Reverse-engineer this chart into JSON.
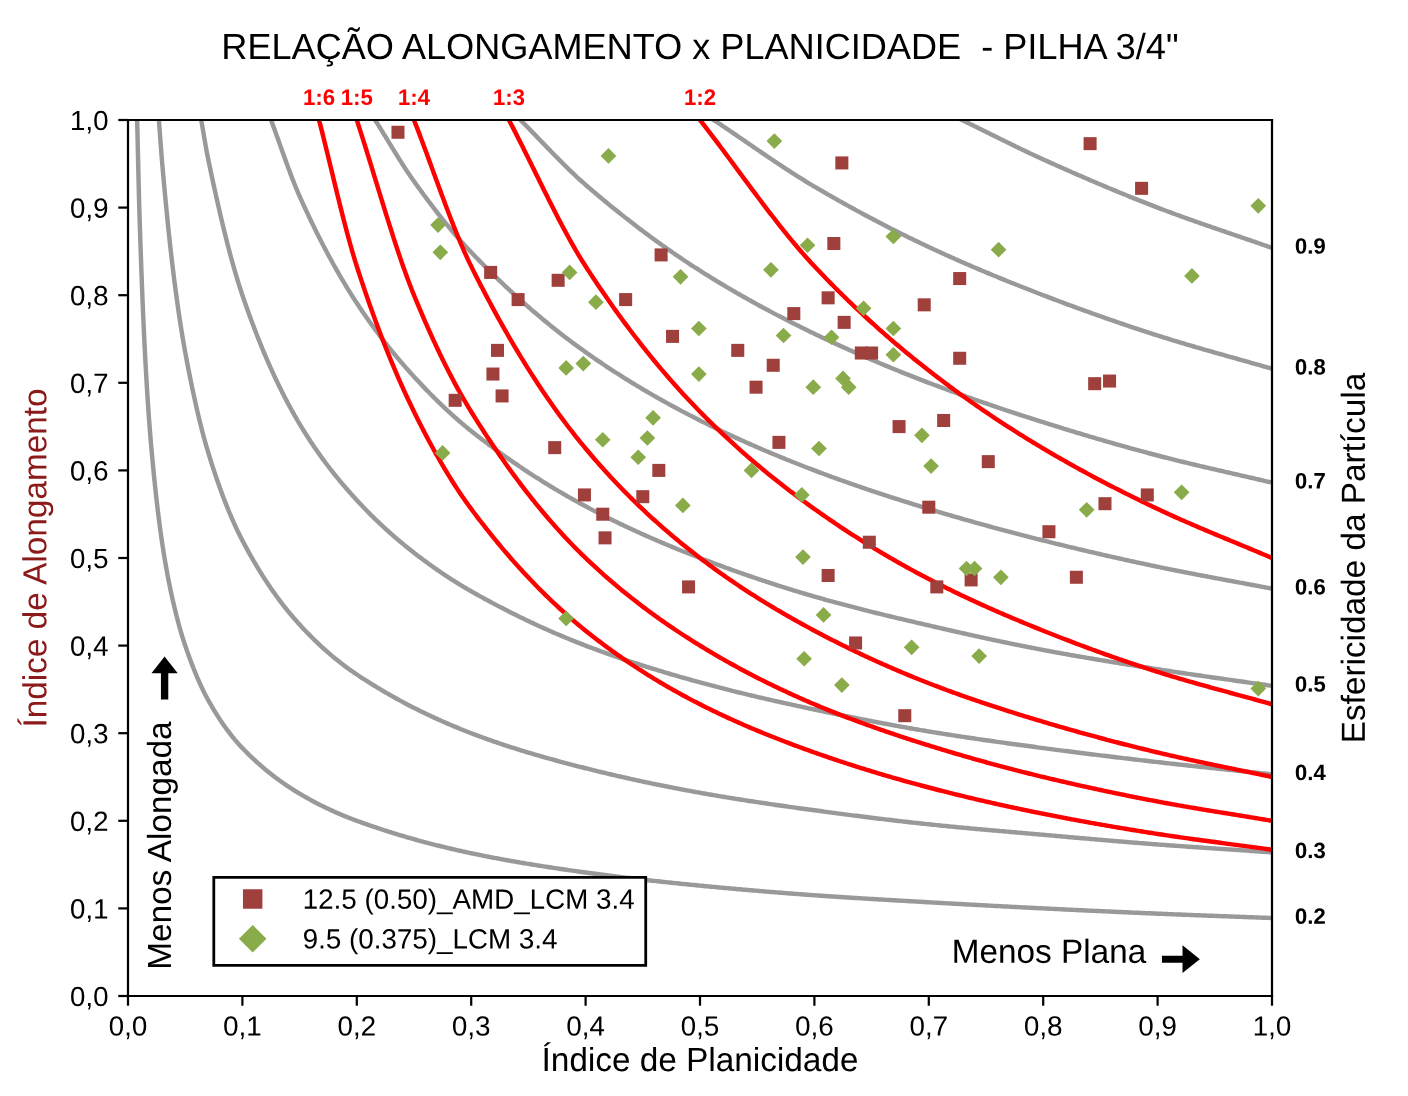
{
  "chart_data": {
    "type": "scatter",
    "title": "RELAÇÃO ALONGAMENTO x PLANICIDADE  - PILHA 3/4\"",
    "xlabel": "Índice de Planicidade",
    "ylabel": "Índice de Alongamento",
    "y2label": "Esfericidade da Partícula",
    "annotations": [
      "Menos Alongada",
      "Menos Plana"
    ],
    "xlim": [
      0,
      1
    ],
    "ylim": [
      0,
      1
    ],
    "xticks": [
      {
        "value": 0,
        "label": "0,0"
      },
      {
        "value": 0.1,
        "label": "0,1"
      },
      {
        "value": 0.2,
        "label": "0,2"
      },
      {
        "value": 0.3,
        "label": "0,3"
      },
      {
        "value": 0.4,
        "label": "0,4"
      },
      {
        "value": 0.5,
        "label": "0,5"
      },
      {
        "value": 0.6,
        "label": "0,6"
      },
      {
        "value": 0.7,
        "label": "0,7"
      },
      {
        "value": 0.8,
        "label": "0,8"
      },
      {
        "value": 0.9,
        "label": "0,9"
      },
      {
        "value": 1,
        "label": "1,0"
      }
    ],
    "yticks": [
      {
        "value": 0,
        "label": "0,0"
      },
      {
        "value": 0.1,
        "label": "0,1"
      },
      {
        "value": 0.2,
        "label": "0,2"
      },
      {
        "value": 0.3,
        "label": "0,3"
      },
      {
        "value": 0.4,
        "label": "0,4"
      },
      {
        "value": 0.5,
        "label": "0,5"
      },
      {
        "value": 0.6,
        "label": "0,6"
      },
      {
        "value": 0.7,
        "label": "0,7"
      },
      {
        "value": 0.8,
        "label": "0,8"
      },
      {
        "value": 0.9,
        "label": "0,9"
      },
      {
        "value": 1,
        "label": "1,0"
      }
    ],
    "grid": false,
    "legend": "bottom left",
    "series": [
      {
        "name": "0.2",
        "type": "line",
        "color": "#999999",
        "x": [
          0.008,
          0.01,
          0.015,
          0.02,
          0.03,
          0.04,
          0.05,
          0.07,
          0.1,
          0.15,
          0.2,
          0.3,
          0.4,
          0.5,
          0.6,
          0.7,
          0.8,
          0.9,
          1.0
        ],
        "values": [
          1,
          0.894,
          0.73,
          0.632,
          0.516,
          0.447,
          0.4,
          0.338,
          0.283,
          0.231,
          0.2,
          0.163,
          0.141,
          0.126,
          0.115,
          0.107,
          0.1,
          0.094,
          0.089
        ]
      },
      {
        "name": "0.3",
        "type": "line",
        "color": "#999999",
        "x": [
          0.027,
          0.03,
          0.04,
          0.05,
          0.07,
          0.1,
          0.15,
          0.2,
          0.3,
          0.4,
          0.5,
          0.6,
          0.7,
          0.8,
          0.9,
          1.0
        ],
        "values": [
          1,
          0.949,
          0.822,
          0.735,
          0.621,
          0.52,
          0.424,
          0.367,
          0.3,
          0.26,
          0.232,
          0.212,
          0.196,
          0.184,
          0.173,
          0.164
        ]
      },
      {
        "name": "0.4",
        "type": "line",
        "color": "#999999",
        "x": [
          0.064,
          0.07,
          0.1,
          0.15,
          0.2,
          0.25,
          0.3,
          0.4,
          0.5,
          0.6,
          0.7,
          0.8,
          0.9,
          1.0
        ],
        "values": [
          1,
          0.956,
          0.8,
          0.653,
          0.566,
          0.506,
          0.462,
          0.4,
          0.358,
          0.327,
          0.302,
          0.283,
          0.267,
          0.253
        ]
      },
      {
        "name": "0.5",
        "type": "line",
        "color": "#999999",
        "x": [
          0.125,
          0.15,
          0.2,
          0.25,
          0.3,
          0.4,
          0.5,
          0.6,
          0.7,
          0.8,
          0.9,
          1.0
        ],
        "values": [
          1,
          0.913,
          0.791,
          0.707,
          0.645,
          0.559,
          0.5,
          0.456,
          0.423,
          0.395,
          0.373,
          0.354
        ]
      },
      {
        "name": "0.6",
        "type": "line",
        "color": "#999999",
        "x": [
          0.216,
          0.25,
          0.3,
          0.4,
          0.5,
          0.6,
          0.7,
          0.8,
          0.9,
          1.0
        ],
        "values": [
          1,
          0.93,
          0.849,
          0.735,
          0.657,
          0.6,
          0.556,
          0.52,
          0.49,
          0.465
        ]
      },
      {
        "name": "0.7",
        "type": "line",
        "color": "#999999",
        "x": [
          0.343,
          0.4,
          0.5,
          0.6,
          0.7,
          0.8,
          0.9,
          1.0
        ],
        "values": [
          1,
          0.926,
          0.828,
          0.756,
          0.7,
          0.655,
          0.617,
          0.586
        ]
      },
      {
        "name": "0.8",
        "type": "line",
        "color": "#999999",
        "x": [
          0.512,
          0.6,
          0.7,
          0.8,
          0.9,
          1.0
        ],
        "values": [
          1,
          0.924,
          0.855,
          0.8,
          0.754,
          0.716
        ]
      },
      {
        "name": "0.9",
        "type": "line",
        "color": "#999999",
        "x": [
          0.729,
          0.8,
          0.9,
          1.0
        ],
        "values": [
          1,
          0.955,
          0.9,
          0.854
        ]
      },
      {
        "name": "1:6",
        "type": "line",
        "color": "#ff0000",
        "x": [
          0.167,
          0.2,
          0.25,
          0.3,
          0.4,
          0.5,
          0.6,
          0.7,
          0.8,
          0.9,
          1.0
        ],
        "values": [
          1,
          0.833,
          0.667,
          0.556,
          0.417,
          0.333,
          0.278,
          0.238,
          0.208,
          0.185,
          0.167
        ]
      },
      {
        "name": "1:5",
        "type": "line",
        "color": "#ff0000",
        "x": [
          0.2,
          0.25,
          0.3,
          0.4,
          0.5,
          0.6,
          0.7,
          0.8,
          0.9,
          1.0
        ],
        "values": [
          1,
          0.8,
          0.667,
          0.5,
          0.4,
          0.333,
          0.286,
          0.25,
          0.222,
          0.2
        ]
      },
      {
        "name": "1:4",
        "type": "line",
        "color": "#ff0000",
        "x": [
          0.25,
          0.3,
          0.4,
          0.5,
          0.6,
          0.7,
          0.8,
          0.9,
          1.0
        ],
        "values": [
          1,
          0.833,
          0.625,
          0.5,
          0.417,
          0.357,
          0.313,
          0.278,
          0.25
        ]
      },
      {
        "name": "1:3",
        "type": "line",
        "color": "#ff0000",
        "x": [
          0.333,
          0.4,
          0.5,
          0.6,
          0.7,
          0.8,
          0.9,
          1.0
        ],
        "values": [
          1,
          0.833,
          0.667,
          0.556,
          0.476,
          0.417,
          0.37,
          0.333
        ]
      },
      {
        "name": "1:2",
        "type": "line",
        "color": "#ff0000",
        "x": [
          0.5,
          0.6,
          0.7,
          0.8,
          0.9,
          1.0
        ],
        "values": [
          1,
          0.833,
          0.714,
          0.625,
          0.556,
          0.5
        ]
      },
      {
        "name": "12.5 (0.50)_AMD_LCM 3.4",
        "type": "scatter",
        "marker": "square",
        "color": "#a0403c",
        "x": [
          0.236,
          0.317,
          0.376,
          0.341,
          0.435,
          0.466,
          0.476,
          0.323,
          0.319,
          0.327,
          0.286,
          0.373,
          0.464,
          0.399,
          0.45,
          0.415,
          0.417,
          0.49,
          0.841,
          0.886,
          0.624,
          0.617,
          0.727,
          0.696,
          0.612,
          0.582,
          0.626,
          0.533,
          0.564,
          0.549,
          0.641,
          0.65,
          0.727,
          0.845,
          0.858,
          0.674,
          0.713,
          0.569,
          0.752,
          0.7,
          0.891,
          0.854,
          0.805,
          0.648,
          0.612,
          0.737,
          0.829,
          0.707,
          0.636,
          0.679
        ],
        "values": [
          0.986,
          0.826,
          0.817,
          0.795,
          0.795,
          0.846,
          0.753,
          0.737,
          0.71,
          0.685,
          0.68,
          0.626,
          0.6,
          0.572,
          0.57,
          0.55,
          0.523,
          0.467,
          0.973,
          0.922,
          0.951,
          0.859,
          0.819,
          0.789,
          0.797,
          0.779,
          0.769,
          0.737,
          0.72,
          0.695,
          0.734,
          0.734,
          0.728,
          0.699,
          0.702,
          0.65,
          0.657,
          0.632,
          0.61,
          0.558,
          0.572,
          0.562,
          0.53,
          0.518,
          0.48,
          0.475,
          0.478,
          0.467,
          0.403,
          0.32
        ]
      },
      {
        "name": "9.5 (0.375)_LCM 3.4",
        "type": "scatter",
        "marker": "diamond",
        "color": "#8aab4a",
        "x": [
          0.42,
          0.271,
          0.273,
          0.386,
          0.483,
          0.409,
          0.499,
          0.499,
          0.383,
          0.398,
          0.459,
          0.415,
          0.454,
          0.446,
          0.275,
          0.485,
          0.383,
          0.565,
          0.988,
          0.594,
          0.669,
          0.761,
          0.562,
          0.93,
          0.643,
          0.669,
          0.573,
          0.615,
          0.669,
          0.625,
          0.63,
          0.599,
          0.694,
          0.604,
          0.702,
          0.545,
          0.921,
          0.838,
          0.589,
          0.59,
          0.733,
          0.74,
          0.763,
          0.608,
          0.591,
          0.624,
          0.685,
          0.744,
          0.988
        ],
        "values": [
          0.959,
          0.88,
          0.849,
          0.826,
          0.821,
          0.792,
          0.762,
          0.71,
          0.717,
          0.722,
          0.66,
          0.635,
          0.637,
          0.615,
          0.62,
          0.56,
          0.431,
          0.976,
          0.902,
          0.857,
          0.867,
          0.852,
          0.829,
          0.822,
          0.785,
          0.762,
          0.754,
          0.752,
          0.732,
          0.705,
          0.695,
          0.695,
          0.64,
          0.625,
          0.605,
          0.6,
          0.575,
          0.555,
          0.572,
          0.501,
          0.488,
          0.488,
          0.478,
          0.435,
          0.385,
          0.355,
          0.398,
          0.388,
          0.351
        ]
      }
    ]
  }
}
